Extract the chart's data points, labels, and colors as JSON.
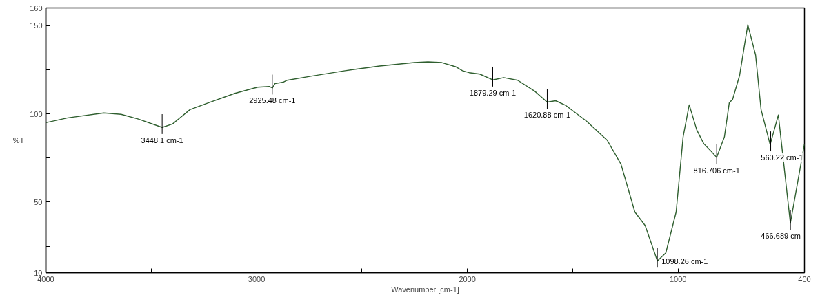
{
  "chart_data": {
    "type": "line",
    "xlabel": "Wavenumber [cm-1]",
    "ylabel": "%T",
    "xlim": [
      4000,
      400
    ],
    "ylim": [
      10,
      160
    ],
    "xticks": [
      4000,
      {
        "value": 3500,
        "label": null
      },
      3000,
      {
        "value": 2500,
        "label": null
      },
      2000,
      {
        "value": 1500,
        "label": null
      },
      1000,
      {
        "value": 500,
        "label": null
      },
      400
    ],
    "yticks": [
      10,
      {
        "value": 25,
        "label": null
      },
      50,
      {
        "value": 75,
        "label": null
      },
      100,
      {
        "value": 125,
        "label": null
      },
      150,
      160
    ],
    "grid": false,
    "marker": "none",
    "line_style": "solid",
    "series": [
      {
        "color": "#2f5f2f",
        "x": [
          4000,
          3896,
          3725,
          3643,
          3561,
          3448,
          3398,
          3316,
          3234,
          3103,
          2995,
          2940,
          2925,
          2913,
          2874,
          2855,
          2743,
          2580,
          2416,
          2252,
          2187,
          2121,
          2056,
          2023,
          1991,
          1941,
          1879,
          1827,
          1761,
          1680,
          1621,
          1581,
          1532,
          1434,
          1336,
          1271,
          1238,
          1205,
          1156,
          1098,
          1058,
          1009,
          976,
          947,
          911,
          878,
          846,
          817,
          780,
          757,
          741,
          708,
          669,
          632,
          606,
          563,
          524,
          467,
          400
        ],
        "values": [
          95.0,
          97.7,
          100.5,
          99.7,
          97.0,
          92.3,
          94.3,
          102.4,
          106.0,
          111.6,
          115.1,
          115.5,
          114.7,
          117.1,
          117.9,
          119.0,
          121.3,
          124.4,
          127.1,
          129.0,
          129.4,
          129.0,
          126.7,
          124.4,
          123.3,
          122.5,
          119.2,
          120.5,
          119.0,
          112.8,
          106.6,
          107.4,
          104.7,
          95.8,
          85.0,
          71.5,
          58.0,
          44.4,
          36.7,
          16.6,
          21.2,
          44.4,
          86.9,
          105.1,
          90.8,
          83.1,
          79.2,
          75.3,
          86.9,
          106.2,
          108.2,
          121.7,
          150.5,
          133.3,
          102.4,
          82.5,
          99.3,
          38.0,
          83.0
        ]
      }
    ],
    "annotations": [
      {
        "text": "3448.1 cm-1",
        "x": 3448.1,
        "y": 92.3
      },
      {
        "text": "2925.48 cm-1",
        "x": 2925.48,
        "y": 114.7
      },
      {
        "text": "1879.29 cm-1",
        "x": 1879.29,
        "y": 119.2
      },
      {
        "text": "1620.88 cm-1",
        "x": 1620.88,
        "y": 106.6
      },
      {
        "text": "1098.26 cm-1",
        "x": 1098.26,
        "y": 16.6
      },
      {
        "text": "816.706 cm-1",
        "x": 816.706,
        "y": 75.3
      },
      {
        "text": "560.22 cm-1",
        "x": 560.22,
        "y": 82.5
      },
      {
        "text": "466.689 cm-",
        "x": 466.689,
        "y": 38.0
      }
    ]
  }
}
